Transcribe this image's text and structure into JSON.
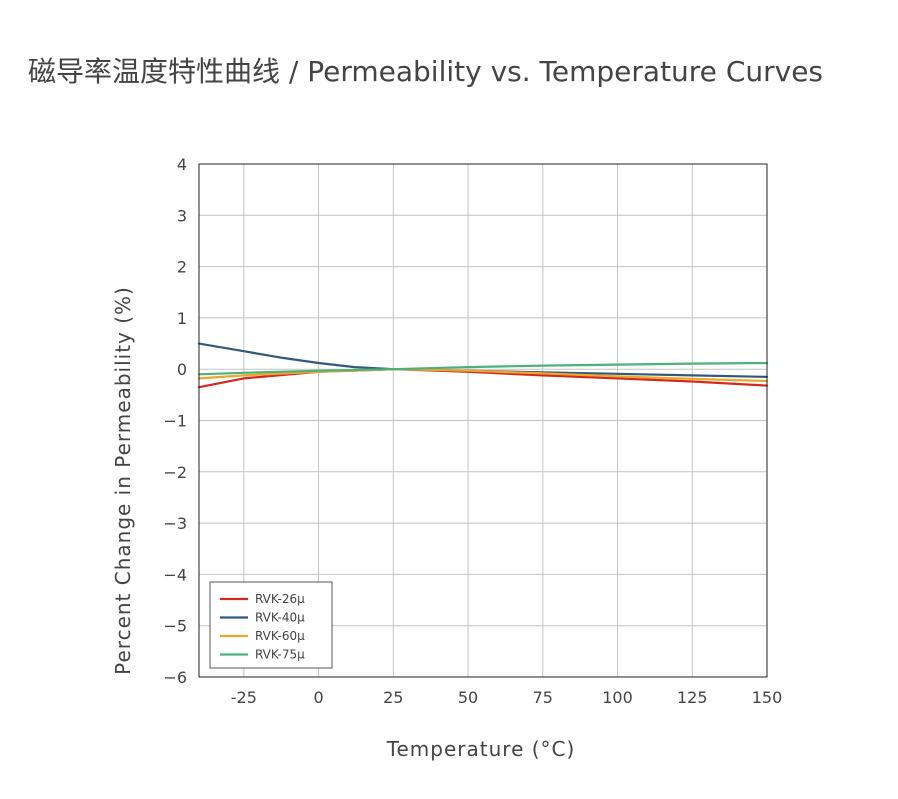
{
  "title": "磁导率温度特性曲线 / Permeability vs. Temperature Curves",
  "chart_data": {
    "type": "line",
    "xlabel": "Temperature (°C)",
    "ylabel": "Percent Change in Permeability (%)",
    "xlim": [
      -40,
      150
    ],
    "ylim": [
      -6,
      4
    ],
    "xticks": [
      -25,
      0,
      25,
      50,
      75,
      100,
      125,
      150
    ],
    "xtick_labels": [
      "-25",
      "0",
      "25",
      "50",
      "75",
      "100",
      "125",
      "150"
    ],
    "yticks": [
      4,
      3,
      2,
      1,
      0,
      -1,
      -2,
      -3,
      -4,
      -5,
      -6
    ],
    "ytick_labels": [
      "4",
      "3",
      "2",
      "1",
      "0",
      "−1",
      "−2",
      "−3",
      "−4",
      "−5",
      "−6"
    ],
    "grid": true,
    "legend_position": "bottom-left",
    "series": [
      {
        "name": "RVK-26μ",
        "color": "#d7281f",
        "x": [
          -40,
          -25,
          0,
          25,
          50,
          75,
          100,
          125,
          150
        ],
        "y": [
          -0.35,
          -0.18,
          -0.05,
          0,
          -0.05,
          -0.12,
          -0.18,
          -0.24,
          -0.32
        ]
      },
      {
        "name": "RVK-40μ",
        "color": "#2f5a7d",
        "x": [
          -40,
          -25,
          -12,
          0,
          12,
          25,
          50,
          75,
          100,
          125,
          150
        ],
        "y": [
          0.5,
          0.35,
          0.22,
          0.12,
          0.04,
          0,
          -0.03,
          -0.06,
          -0.09,
          -0.12,
          -0.15
        ]
      },
      {
        "name": "RVK-60μ",
        "color": "#eaa82c",
        "x": [
          -40,
          -25,
          0,
          25,
          50,
          75,
          100,
          125,
          150
        ],
        "y": [
          -0.18,
          -0.12,
          -0.05,
          0,
          -0.03,
          -0.08,
          -0.14,
          -0.19,
          -0.23
        ]
      },
      {
        "name": "RVK-75μ",
        "color": "#4cb27a",
        "x": [
          -40,
          -25,
          0,
          25,
          50,
          75,
          100,
          125,
          150
        ],
        "y": [
          -0.1,
          -0.07,
          -0.03,
          0,
          0.04,
          0.07,
          0.09,
          0.11,
          0.12
        ]
      }
    ]
  }
}
